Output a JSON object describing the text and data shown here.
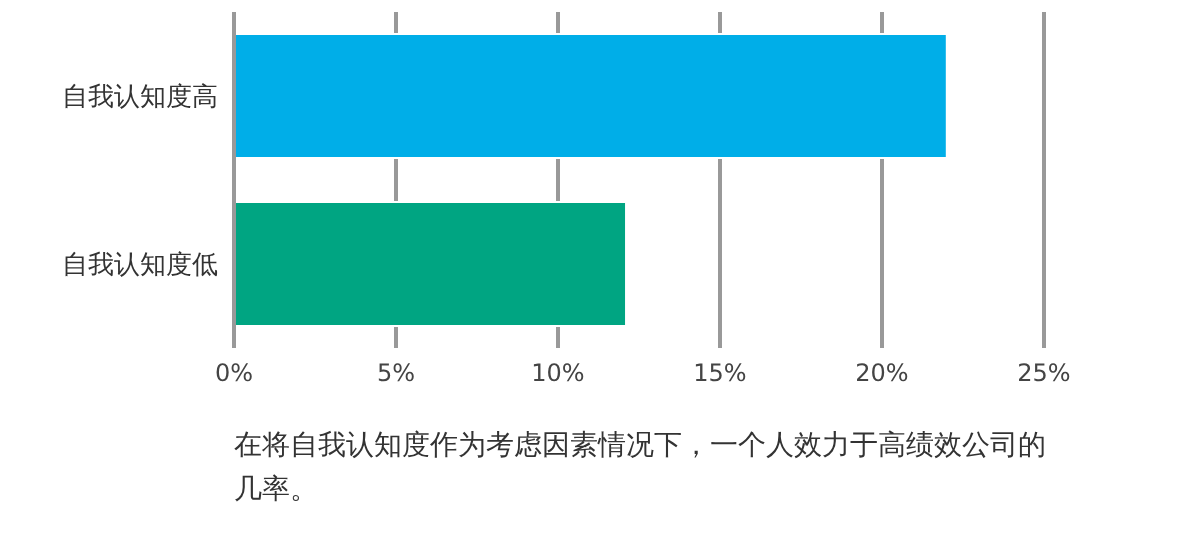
{
  "chart_data": {
    "type": "bar",
    "orientation": "horizontal",
    "categories": [
      "自我认知度高",
      "自我认知度低"
    ],
    "values": [
      22,
      12.1
    ],
    "colors": [
      "#00aee8",
      "#00a582"
    ],
    "xlim": [
      0,
      25
    ],
    "xticks": [
      {
        "value": 0,
        "label": "0%"
      },
      {
        "value": 5,
        "label": "5%"
      },
      {
        "value": 10,
        "label": "10%"
      },
      {
        "value": 15,
        "label": "15%"
      },
      {
        "value": 20,
        "label": "20%"
      },
      {
        "value": 25,
        "label": "25%"
      }
    ],
    "grid": "x",
    "annotations": [
      "在将自我认知度作为考虑因素情况下，一个人效力于高绩效公司的几率。"
    ]
  }
}
